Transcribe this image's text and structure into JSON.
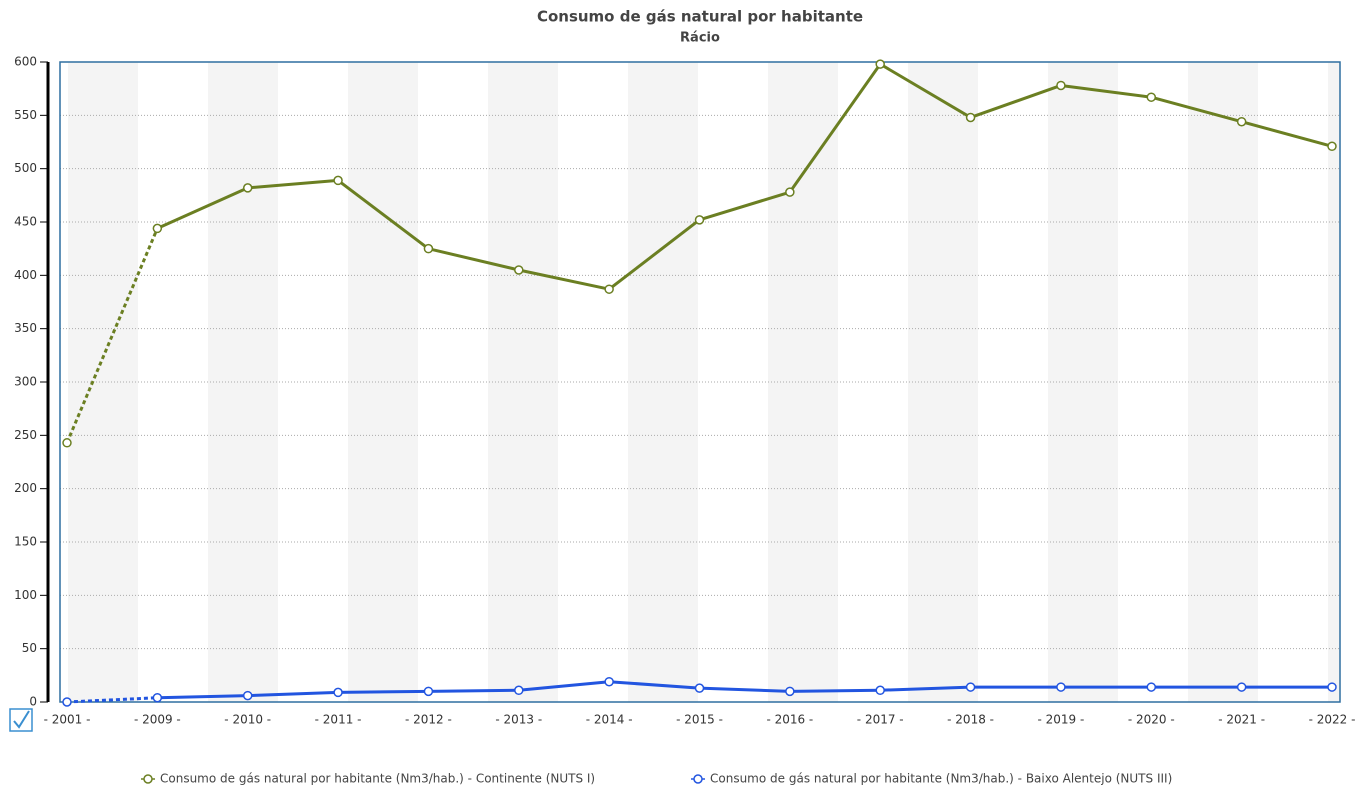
{
  "chart_data": {
    "type": "line",
    "title": "Consumo de gás natural por habitante",
    "subtitle": "Rácio",
    "categories": [
      "- 2001 -",
      "- 2009 -",
      "- 2010 -",
      "- 2011 -",
      "- 2012 -",
      "- 2013 -",
      "- 2014 -",
      "- 2015 -",
      "- 2016 -",
      "- 2017 -",
      "- 2018 -",
      "- 2019 -",
      "- 2020 -",
      "- 2021 -",
      "- 2022 -"
    ],
    "series": [
      {
        "name": "Consumo de gás natural por habitante (Nm3/hab.) - Continente (NUTS I)",
        "color": "#6b7f22",
        "values": [
          243,
          444,
          482,
          489,
          425,
          405,
          387,
          452,
          478,
          598,
          548,
          578,
          567,
          544,
          521
        ]
      },
      {
        "name": "Consumo de gás natural por habitante (Nm3/hab.) - Baixo Alentejo (NUTS III)",
        "color": "#2255e0",
        "values": [
          0,
          4,
          6,
          9,
          10,
          11,
          19,
          13,
          10,
          11,
          14,
          14,
          14,
          14,
          14
        ]
      }
    ],
    "ylim": [
      0,
      600
    ],
    "yticks": [
      0,
      50,
      100,
      150,
      200,
      250,
      300,
      350,
      400,
      450,
      500,
      550,
      600
    ],
    "grid": true
  }
}
